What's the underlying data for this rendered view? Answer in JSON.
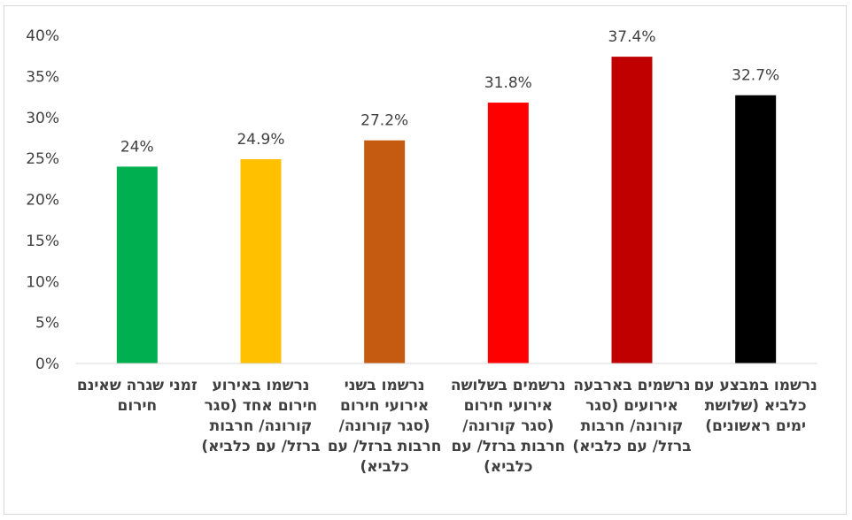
{
  "chart_data": {
    "type": "bar",
    "title": "",
    "xlabel": "",
    "ylabel": "",
    "ylim": [
      0,
      40
    ],
    "yticks": [
      "0%",
      "5%",
      "10%",
      "15%",
      "20%",
      "25%",
      "30%",
      "35%",
      "40%"
    ],
    "grid": false,
    "legend": "none",
    "categories": [
      "זמני שגרה שאינם חירום",
      "נרשמו באירוע חירום אחד (סגר קורונה/ חרבות ברזל/ עם כלביא)",
      "נרשמו בשני אירועי חירום (סגר קורונה/ חרבות ברזל/ עם כלביא)",
      "נרשמים בשלושה אירועי חירום (סגר קורונה/ חרבות ברזל/ עם כלביא)",
      "נרשמים בארבעה אירועים (סגר קורונה/ חרבות ברזל/ עם כלביא)",
      "נרשמו במבצע עם כלביא (שלושת ימים ראשונים)"
    ],
    "values": [
      24,
      24.9,
      27.2,
      31.8,
      37.4,
      32.7
    ],
    "value_labels": [
      "24%",
      "24.9%",
      "27.2%",
      "31.8%",
      "37.4%",
      "32.7%"
    ],
    "colors": [
      "#00b050",
      "#ffc000",
      "#c55a11",
      "#ff0000",
      "#c00000",
      "#000000"
    ]
  }
}
